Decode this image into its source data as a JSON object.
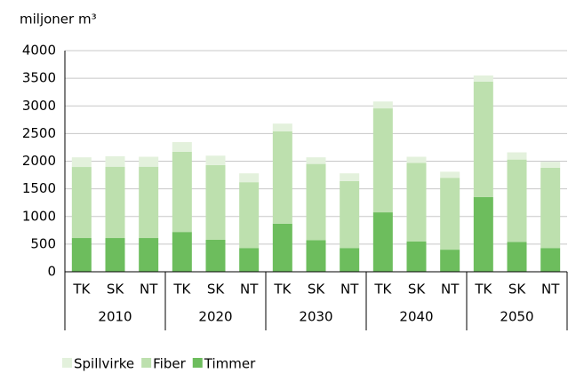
{
  "chart_data": {
    "type": "stacked_bar",
    "y_label": "miljoner m³",
    "categories": [
      "TK",
      "SK",
      "NT",
      "TK",
      "SK",
      "NT",
      "TK",
      "SK",
      "NT",
      "TK",
      "SK",
      "NT",
      "TK",
      "SK",
      "NT"
    ],
    "groups": [
      "2010",
      "2020",
      "2030",
      "2040",
      "2050"
    ],
    "series": [
      {
        "name": "Spillvirke",
        "color": "#e3f1dc",
        "values": [
          175,
          190,
          180,
          175,
          170,
          160,
          140,
          120,
          140,
          125,
          110,
          110,
          110,
          130,
          110
        ]
      },
      {
        "name": "Fiber",
        "color": "#bde0ae",
        "values": [
          1285,
          1290,
          1290,
          1450,
          1350,
          1190,
          1670,
          1380,
          1210,
          1880,
          1420,
          1300,
          2090,
          1490,
          1450
        ]
      },
      {
        "name": "Timmer",
        "color": "#6dbd5d",
        "values": [
          610,
          610,
          610,
          720,
          580,
          430,
          870,
          570,
          430,
          1075,
          550,
          400,
          1350,
          540,
          430
        ]
      }
    ],
    "ylim": [
      0,
      4000
    ],
    "yticks": [
      0,
      500,
      1000,
      1500,
      2000,
      2500,
      3000,
      3500,
      4000
    ],
    "grid": true
  }
}
